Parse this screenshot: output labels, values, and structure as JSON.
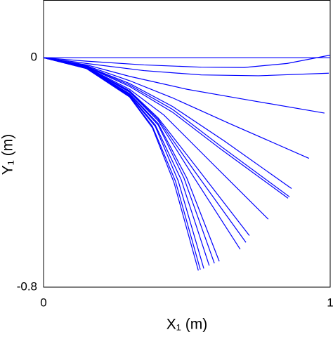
{
  "chart_data": {
    "type": "line",
    "xlabel": "X₁ (m)",
    "ylabel": "Y₁ (m)",
    "xlim": [
      0,
      1
    ],
    "ylim": [
      -0.8,
      0.2
    ],
    "xticks": [
      0,
      1
    ],
    "yticks": [
      -0.8,
      0
    ],
    "series": [
      {
        "color": "#0000ff",
        "x": [
          0,
          0.25,
          0.5,
          0.75,
          1
        ],
        "values": [
          0,
          0,
          0,
          0,
          0
        ]
      },
      {
        "color": "#0000ff",
        "x": [
          0,
          0.15,
          0.35,
          0.55,
          0.7,
          0.85,
          1
        ],
        "values": [
          0,
          -0.012,
          -0.025,
          -0.033,
          -0.034,
          -0.02,
          0.009
        ]
      },
      {
        "color": "#0000ff",
        "x": [
          0,
          0.15,
          0.35,
          0.55,
          0.75,
          0.995
        ],
        "values": [
          0,
          -0.02,
          -0.045,
          -0.06,
          -0.063,
          -0.054
        ]
      },
      {
        "color": "#0000ff",
        "x": [
          0,
          0.15,
          0.3,
          0.5,
          0.7,
          0.98
        ],
        "values": [
          0,
          -0.025,
          -0.065,
          -0.11,
          -0.145,
          -0.193
        ]
      },
      {
        "color": "#0000ff",
        "x": [
          0,
          0.15,
          0.3,
          0.45,
          0.65,
          0.926
        ],
        "values": [
          0,
          -0.028,
          -0.08,
          -0.14,
          -0.23,
          -0.351
        ]
      },
      {
        "color": "#0000ff",
        "x": [
          0,
          0.15,
          0.3,
          0.45,
          0.63,
          0.865
        ],
        "values": [
          0,
          -0.03,
          -0.09,
          -0.17,
          -0.29,
          -0.456
        ]
      },
      {
        "color": "#0000ff",
        "x": [
          0,
          0.15,
          0.3,
          0.45,
          0.62,
          0.858
        ],
        "values": [
          0,
          -0.031,
          -0.095,
          -0.18,
          -0.31,
          -0.485
        ]
      },
      {
        "color": "#0000ff",
        "x": [
          0,
          0.15,
          0.3,
          0.45,
          0.62,
          0.853
        ],
        "values": [
          0,
          -0.032,
          -0.1,
          -0.19,
          -0.32,
          -0.49
        ]
      },
      {
        "color": "#0000ff",
        "x": [
          0,
          0.15,
          0.3,
          0.42,
          0.58,
          0.784
        ],
        "values": [
          0,
          -0.033,
          -0.11,
          -0.2,
          -0.36,
          -0.563
        ]
      },
      {
        "color": "#0000ff",
        "x": [
          0,
          0.15,
          0.3,
          0.4,
          0.54,
          0.718
        ],
        "values": [
          0,
          -0.034,
          -0.115,
          -0.21,
          -0.39,
          -0.62
        ]
      },
      {
        "color": "#0000ff",
        "x": [
          0,
          0.15,
          0.3,
          0.4,
          0.53,
          0.706
        ],
        "values": [
          0,
          -0.035,
          -0.118,
          -0.215,
          -0.4,
          -0.644
        ]
      },
      {
        "color": "#0000ff",
        "x": [
          0,
          0.15,
          0.3,
          0.4,
          0.52,
          0.686
        ],
        "values": [
          0,
          -0.035,
          -0.12,
          -0.22,
          -0.41,
          -0.668
        ]
      },
      {
        "color": "#0000ff",
        "x": [
          0,
          0.15,
          0.3,
          0.4,
          0.5,
          0.613
        ],
        "values": [
          0,
          -0.036,
          -0.125,
          -0.23,
          -0.42,
          -0.71
        ]
      },
      {
        "color": "#0000ff",
        "x": [
          0,
          0.15,
          0.3,
          0.4,
          0.49,
          0.596
        ],
        "values": [
          0,
          -0.036,
          -0.127,
          -0.235,
          -0.42,
          -0.717
        ]
      },
      {
        "color": "#0000ff",
        "x": [
          0,
          0.15,
          0.3,
          0.39,
          0.48,
          0.578
        ],
        "values": [
          0,
          -0.037,
          -0.13,
          -0.235,
          -0.425,
          -0.725
        ]
      },
      {
        "color": "#0000ff",
        "x": [
          0,
          0.15,
          0.3,
          0.39,
          0.47,
          0.559
        ],
        "values": [
          0,
          -0.037,
          -0.133,
          -0.24,
          -0.43,
          -0.735
        ]
      },
      {
        "color": "#0000ff",
        "x": [
          0,
          0.15,
          0.3,
          0.38,
          0.46,
          0.547
        ],
        "values": [
          0,
          -0.038,
          -0.135,
          -0.24,
          -0.43,
          -0.739
        ]
      },
      {
        "color": "#0000ff",
        "x": [
          0,
          0.15,
          0.3,
          0.38,
          0.455,
          0.54
        ],
        "values": [
          0,
          -0.038,
          -0.137,
          -0.245,
          -0.435,
          -0.742
        ]
      }
    ]
  }
}
